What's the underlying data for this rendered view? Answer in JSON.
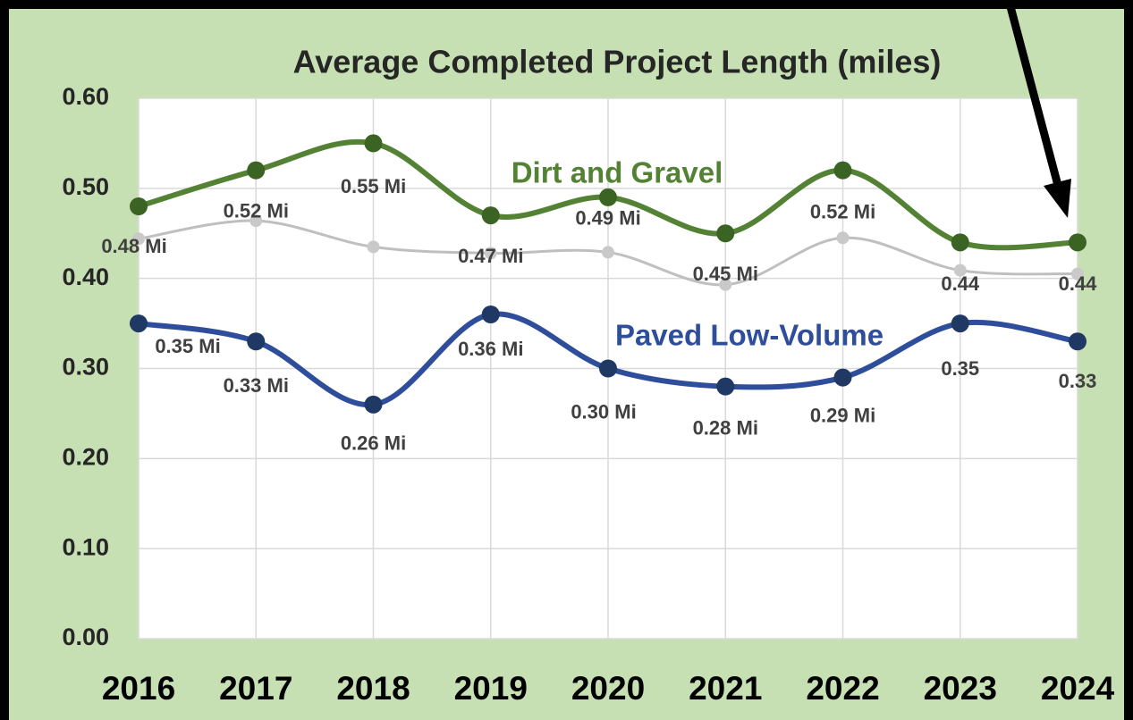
{
  "chart_data": {
    "type": "line",
    "title": "Average Completed Project Length (miles)",
    "categories": [
      "2016",
      "2017",
      "2018",
      "2019",
      "2020",
      "2021",
      "2022",
      "2023",
      "2024"
    ],
    "series": [
      {
        "name": "Dirt and Gravel",
        "color": "#548235",
        "values": [
          0.48,
          0.52,
          0.55,
          0.47,
          0.49,
          0.45,
          0.52,
          0.44,
          0.44
        ],
        "value_labels": [
          "0.48 Mi",
          "0.52 Mi",
          "0.55 Mi",
          "0.47 Mi",
          "0.49 Mi",
          "0.45 Mi",
          "0.52 Mi",
          "0.44",
          "0.44"
        ]
      },
      {
        "color": "#bfbfbf",
        "values": [
          0.444,
          0.464,
          0.435,
          0.428,
          0.429,
          0.393,
          0.445,
          0.409,
          0.405
        ]
      },
      {
        "name": "Paved Low-Volume",
        "color": "#2e4d9a",
        "values": [
          0.35,
          0.33,
          0.26,
          0.36,
          0.3,
          0.28,
          0.29,
          0.35,
          0.33
        ],
        "value_labels": [
          "0.35 Mi",
          "0.33 Mi",
          "0.26 Mi",
          "0.36 Mi",
          "0.30 Mi",
          "0.28 Mi",
          "0.29 Mi",
          "0.35",
          "0.33"
        ]
      }
    ],
    "ylim": [
      0,
      0.6
    ],
    "yticks": [
      {
        "value": 0,
        "label": "0.00"
      },
      {
        "value": 0.1,
        "label": "0.10"
      },
      {
        "value": 0.2,
        "label": "0.20"
      },
      {
        "value": 0.3,
        "label": "0.30"
      },
      {
        "value": 0.4,
        "label": "0.40"
      },
      {
        "value": 0.5,
        "label": "0.50"
      },
      {
        "value": 0.6,
        "label": "0.60"
      }
    ],
    "grid": true
  }
}
